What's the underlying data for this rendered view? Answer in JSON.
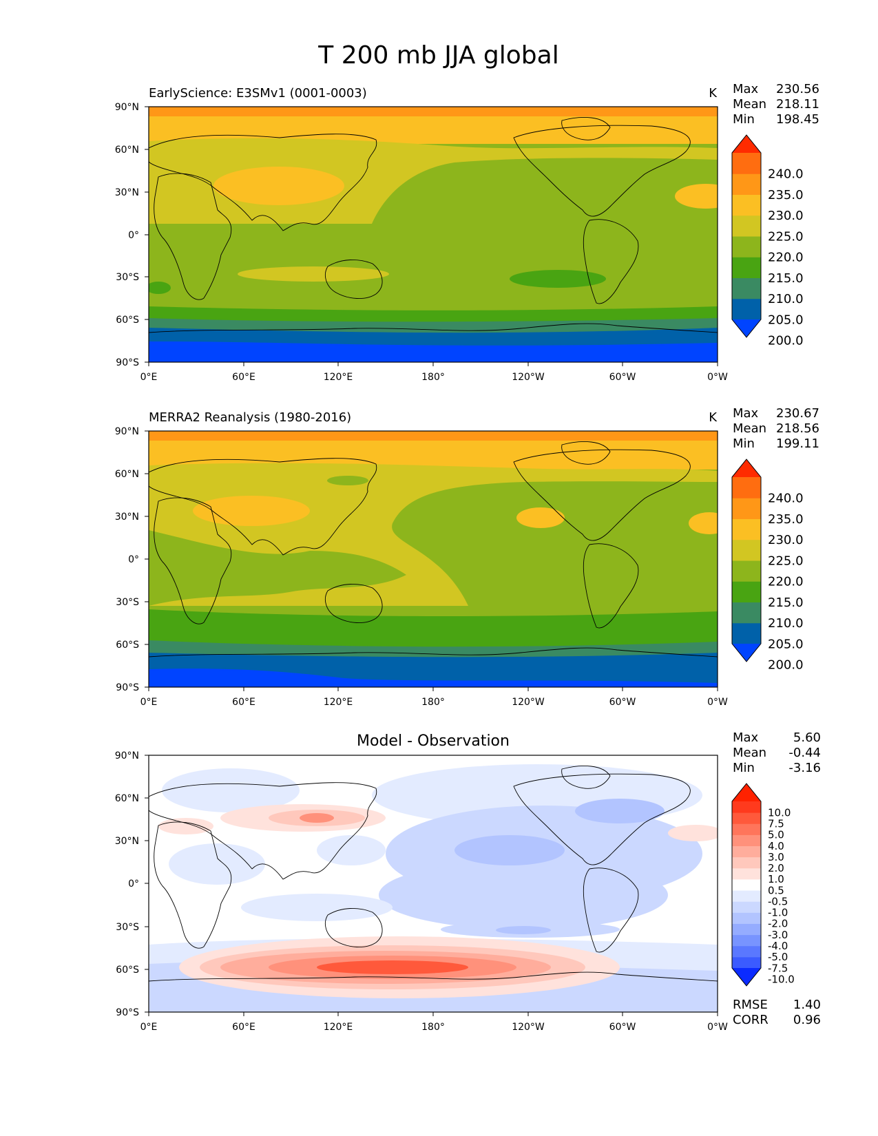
{
  "title": "T 200 mb JJA global",
  "axes": {
    "lat_labels": [
      "90°N",
      "60°N",
      "30°N",
      "0°",
      "30°S",
      "60°S",
      "90°S"
    ],
    "lon_labels": [
      "0°E",
      "60°E",
      "120°E",
      "180°",
      "120°W",
      "60°W",
      "0°W"
    ]
  },
  "panels": [
    {
      "title_left": "EarlyScience: E3SMv1 (0001-0003)",
      "units": "K",
      "stats": [
        {
          "label": "Max",
          "value": "230.56"
        },
        {
          "label": "Mean",
          "value": "218.11"
        },
        {
          "label": "Min",
          "value": "198.45"
        }
      ],
      "colorbar": {
        "levels": [
          "240.0",
          "235.0",
          "230.0",
          "225.0",
          "220.0",
          "215.0",
          "210.0",
          "205.0",
          "200.0"
        ],
        "colors": [
          "#0044ff",
          "#0061a9",
          "#3a8a62",
          "#49a412",
          "#8db51c",
          "#d2c622",
          "#fbbf23",
          "#ff9717",
          "#ff6d10",
          "#ff2b00"
        ]
      }
    },
    {
      "title_left": "MERRA2 Reanalysis (1980-2016)",
      "units": "K",
      "stats": [
        {
          "label": "Max",
          "value": "230.67"
        },
        {
          "label": "Mean",
          "value": "218.56"
        },
        {
          "label": "Min",
          "value": "199.11"
        }
      ],
      "colorbar": {
        "levels": [
          "240.0",
          "235.0",
          "230.0",
          "225.0",
          "220.0",
          "215.0",
          "210.0",
          "205.0",
          "200.0"
        ],
        "colors": [
          "#0044ff",
          "#0061a9",
          "#3a8a62",
          "#49a412",
          "#8db51c",
          "#d2c622",
          "#fbbf23",
          "#ff9717",
          "#ff6d10",
          "#ff2b00"
        ]
      }
    },
    {
      "title_center": "Model - Observation",
      "stats": [
        {
          "label": "Max",
          "value": "5.60"
        },
        {
          "label": "Mean",
          "value": "-0.44"
        },
        {
          "label": "Min",
          "value": "-3.16"
        }
      ],
      "colorbar": {
        "levels": [
          "10.0",
          "7.5",
          "5.0",
          "4.0",
          "3.0",
          "2.0",
          "1.0",
          "0.5",
          "-0.5",
          "-1.0",
          "-2.0",
          "-3.0",
          "-4.0",
          "-5.0",
          "-7.5",
          "-10.0"
        ],
        "colors": [
          "#0b2bff",
          "#3b5bff",
          "#5a78ff",
          "#7894ff",
          "#95acff",
          "#b2c4ff",
          "#cbd8ff",
          "#e3ebff",
          "#ffffff",
          "#ffe2dc",
          "#ffc8bc",
          "#ffad9c",
          "#ff917b",
          "#ff755b",
          "#ff593b",
          "#ff3a1d",
          "#ff2200"
        ]
      },
      "metrics": [
        {
          "label": "RMSE",
          "value": "1.40"
        },
        {
          "label": "CORR",
          "value": "0.96"
        }
      ]
    }
  ]
}
